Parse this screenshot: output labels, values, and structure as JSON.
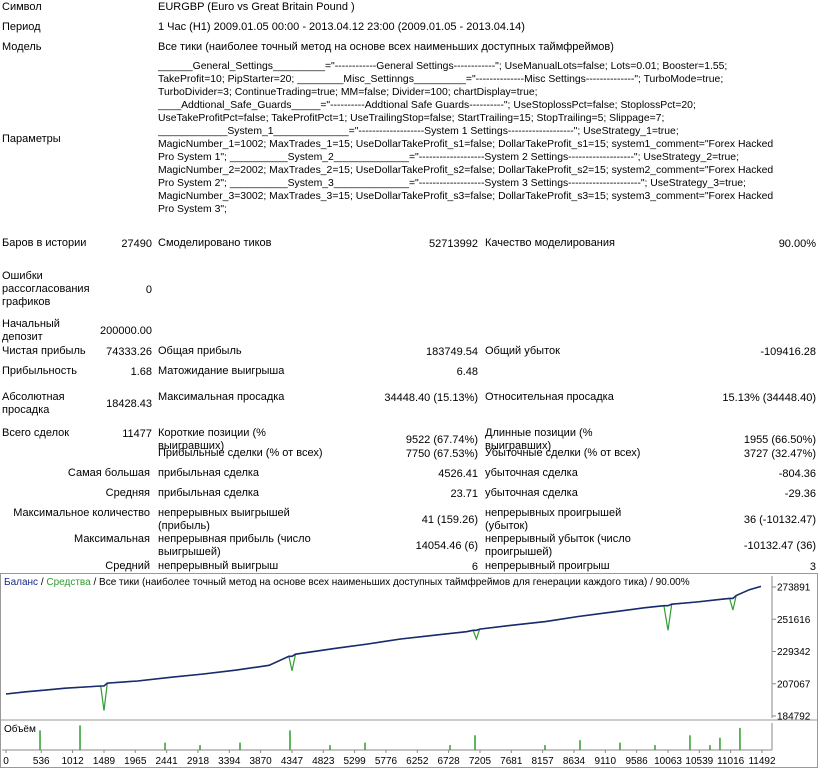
{
  "header": {
    "symbol_label": "Символ",
    "symbol": "EURGBP (Euro vs Great Britain Pound )",
    "period_label": "Период",
    "period": "1 Час (H1) 2009.01.05 00:00 - 2013.04.12 23:00 (2009.01.05 - 2013.04.14)",
    "model_label": "Модель",
    "model": "Все тики (наиболее точный метод на основе всех наименьших доступных таймфреймов)",
    "params_label": "Параметры",
    "params_lines": [
      "______General_Settings_________=\"------------General Settings------------\"; UseManualLots=false; Lots=0.01; Booster=1.55;",
      "TakeProfit=10; PipStarter=20; ________Misc_Settinngs_________=\"--------------Misc Settings--------------\"; TurboMode=true;",
      "TurboDivider=3; ContinueTrading=true; MM=false; Divider=100; chartDisplay=true;",
      "____Addtional_Safe_Guards_____=\"----------Addtional Safe Guards----------\"; UseStoplossPct=false; StoplossPct=20;",
      "UseTakeProfitPct=false; TakeProfitPct=1; UseTrailingStop=false; StartTrailing=15; StopTrailing=5; Slippage=7;",
      "____________System_1_____________=\"-------------------System 1 Settings-------------------\"; UseStrategy_1=true;",
      "MagicNumber_1=1002; MaxTrades_1=15; UseDollarTakeProfit_s1=false; DollarTakeProfit_s1=15; system1_comment=\"Forex Hacked",
      "Pro System 1\"; __________System_2_____________=\"-------------------System 2 Settings-------------------\"; UseStrategy_2=true;",
      "MagicNumber_2=2002; MaxTrades_2=15; UseDollarTakeProfit_s2=false; DollarTakeProfit_s2=15; system2_comment=\"Forex Hacked",
      "Pro System 2\"; __________System_3_____________=\"-------------------System 3 Settings---------------------\"; UseStrategy_3=true;",
      "MagicNumber_3=3002; MaxTrades_3=15; UseDollarTakeProfit_s3=false; DollarTakeProfit_s3=15; system3_comment=\"Forex Hacked",
      "Pro System 3\";"
    ]
  },
  "stats": [
    {
      "left": [
        "Баров в истории",
        "27490"
      ],
      "mid": [
        "Смоделировано тиков",
        "52713992"
      ],
      "right": [
        "Качество моделирования",
        "90.00%"
      ]
    },
    {
      "left": [
        "Ошибки рассогласования графиков",
        "0"
      ]
    },
    {
      "left": [
        "Начальный депозит",
        "200000.00"
      ]
    },
    {
      "left": [
        "Чистая прибыль",
        "74333.26"
      ],
      "mid": [
        "Общая прибыль",
        "183749.54"
      ],
      "right": [
        "Общий убыток",
        "-109416.28"
      ]
    },
    {
      "left": [
        "Прибыльность",
        "1.68"
      ],
      "mid": [
        "Матожидание выигрыша",
        "6.48"
      ]
    },
    {
      "left": [
        "Абсолютная просадка",
        "18428.43"
      ],
      "mid": [
        "Максимальная просадка",
        "34448.40 (15.13%)"
      ],
      "right": [
        "Относительная просадка",
        "15.13% (34448.40)"
      ]
    },
    {
      "left": [
        "Всего сделок",
        "11477"
      ],
      "mid": [
        "Короткие позиции (% выигравших)",
        "9522 (67.74%)"
      ],
      "right": [
        "Длинные позиции (% выигравших)",
        "1955 (66.50%)"
      ]
    },
    {
      "mid": [
        "Прибыльные сделки (% от всех)",
        "7750 (67.53%)"
      ],
      "right": [
        "Убыточные сделки (% от всех)",
        "3727 (32.47%)"
      ]
    },
    {
      "span": "Самая большая",
      "mid": [
        "прибыльная сделка",
        "4526.41"
      ],
      "right": [
        "убыточная сделка",
        "-804.36"
      ]
    },
    {
      "span": "Средняя",
      "mid": [
        "прибыльная сделка",
        "23.71"
      ],
      "right": [
        "убыточная сделка",
        "-29.36"
      ]
    },
    {
      "span": "Максимальное количество",
      "mid": [
        "непрерывных выигрышей (прибыль)",
        "41 (159.26)"
      ],
      "right": [
        "непрерывных проигрышей (убыток)",
        "36 (-10132.47)"
      ]
    },
    {
      "span": "Максимальная",
      "mid": [
        "непрерывная прибыль (число выигрышей)",
        "14054.46 (6)"
      ],
      "right": [
        "непрерывный убыток (число проигрышей)",
        "-10132.47 (36)"
      ]
    },
    {
      "span": "Средний",
      "mid": [
        "непрерывный выигрыш",
        "6"
      ],
      "right": [
        "непрерывный проигрыш",
        "3"
      ]
    }
  ],
  "chart_data": {
    "type": "line",
    "legend": {
      "separator": "/",
      "description": "Все тики (наиболее точный метод на основе всех наименьших доступных таймфреймов для генерации каждого тика)",
      "quality": "90.00%"
    },
    "x": [
      0,
      300,
      600,
      900,
      1200,
      1440,
      1489,
      1540,
      2000,
      2500,
      3000,
      3500,
      4000,
      4300,
      4347,
      4400,
      5000,
      5500,
      6000,
      6500,
      7000,
      7100,
      7150,
      7200,
      7700,
      8200,
      8700,
      9200,
      9700,
      10000,
      10063,
      10120,
      10500,
      10900,
      11000,
      11050,
      11100,
      11300,
      11477
    ],
    "series": [
      {
        "name": "Баланс",
        "color": "#1a2a6e",
        "values": [
          200000,
          201500,
          202700,
          204000,
          204800,
          205500,
          205500,
          207500,
          209000,
          211500,
          213800,
          216500,
          219800,
          226000,
          226000,
          227500,
          231500,
          234500,
          238000,
          240500,
          243000,
          244000,
          244000,
          244800,
          247500,
          250000,
          253500,
          256500,
          259500,
          261000,
          261000,
          262000,
          263500,
          265500,
          266000,
          266000,
          268000,
          272000,
          274333
        ]
      },
      {
        "name": "Средства",
        "color": "#2e9e2e",
        "values": [
          200000,
          201500,
          202700,
          204000,
          204800,
          205500,
          188500,
          207500,
          209000,
          211500,
          213800,
          216500,
          219800,
          226000,
          216000,
          227500,
          231500,
          234500,
          238000,
          240500,
          243000,
          244000,
          238000,
          244800,
          247500,
          250000,
          253500,
          256500,
          259500,
          261000,
          244000,
          262000,
          263500,
          265500,
          266000,
          258000,
          268000,
          272000,
          274333
        ]
      }
    ],
    "xlim": [
      -61,
      11644
    ],
    "ylim": [
      183411,
      281489
    ],
    "xticks": [
      0,
      536,
      1012,
      1489,
      1965,
      2441,
      2918,
      3394,
      3870,
      4347,
      4823,
      5299,
      5776,
      6252,
      6728,
      7205,
      7681,
      8157,
      8634,
      9110,
      9586,
      10063,
      10539,
      11016,
      11492
    ],
    "yticks": [
      184792,
      207067,
      229342,
      251616,
      273891
    ],
    "volume": {
      "label": "Объём",
      "color": "#2e9e2e",
      "x": [
        517,
        1125,
        2417,
        2949,
        3557,
        4317,
        4925,
        5457,
        6749,
        7129,
        8193,
        8725,
        9333,
        9865,
        10397,
        10701,
        10853,
        11157
      ],
      "values": [
        8,
        10,
        3,
        2,
        3,
        8,
        2,
        3,
        2,
        6,
        2,
        4,
        3,
        2,
        6,
        2,
        5,
        9
      ],
      "ylim": [
        0,
        11
      ]
    }
  }
}
